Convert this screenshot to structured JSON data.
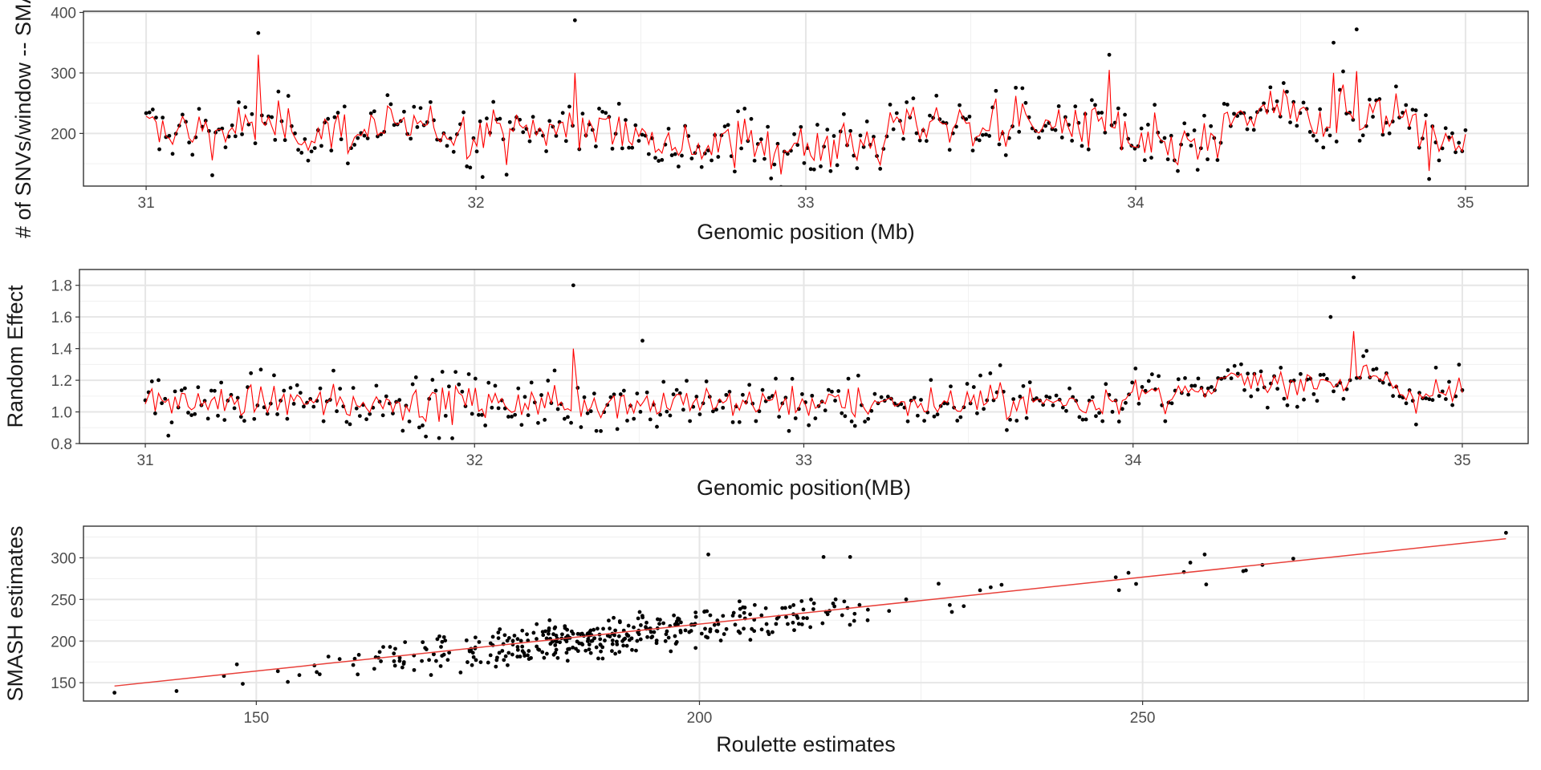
{
  "chart_data": [
    {
      "id": "snv",
      "type": "scatter",
      "xlabel": "Genomic position (Mb)",
      "ylabel": "# of SNVs/window -- SMASH",
      "xlim": [
        30.81,
        35.19
      ],
      "ylim": [
        113,
        402
      ],
      "xticks": [
        31,
        32,
        33,
        34,
        35
      ],
      "xtick_labels": [
        "31",
        "32",
        "33",
        "34",
        "35"
      ],
      "yticks": [
        200,
        300,
        400
      ],
      "ytick_labels": [
        "200",
        "300",
        "400"
      ],
      "grid": true,
      "legend": "none",
      "series": [
        {
          "kind": "points",
          "color": "#000000",
          "x_range": [
            31.0,
            35.0
          ],
          "n": 400,
          "y_sample": [
            178,
            246,
            186,
            210,
            165,
            232,
            242,
            190,
            215,
            230,
            210,
            366,
            205,
            230,
            255,
            264,
            302,
            205,
            217,
            300,
            320,
            244,
            215,
            270,
            200,
            180,
            190,
            215,
            298,
            210,
            200,
            170,
            128,
            200,
            190,
            160,
            215,
            170,
            240,
            150,
            387,
            280,
            290,
            160,
            230,
            180,
            283,
            200,
            190,
            170,
            200,
            175,
            160,
            190,
            190,
            178,
            257,
            180,
            160,
            190,
            142,
            170,
            130,
            185,
            210,
            260,
            215,
            190,
            205,
            240,
            175,
            222,
            200,
            236,
            205,
            230,
            246,
            190,
            210,
            330,
            160,
            175,
            170,
            200,
            170,
            190,
            160,
            155,
            205,
            200,
            255,
            276,
            210,
            230,
            240,
            225,
            250,
            300,
            350,
            190,
            372,
            200,
            230,
            250,
            288,
            200,
            180,
            175,
            200,
            210,
            175
          ],
          "notable_points": [
            [
              31.34,
              366
            ],
            [
              32.3,
              387
            ],
            [
              33.92,
              330
            ],
            [
              34.6,
              350
            ],
            [
              34.67,
              372
            ],
            [
              32.02,
              128
            ]
          ]
        },
        {
          "kind": "line",
          "color": "#ff0000",
          "x_range": [
            31.0,
            35.0
          ],
          "n": 400,
          "peaks": [
            [
              31.34,
              330
            ],
            [
              32.3,
              300
            ],
            [
              33.92,
              305
            ],
            [
              34.6,
              300
            ],
            [
              34.67,
              303
            ]
          ]
        }
      ]
    },
    {
      "id": "random-effect",
      "type": "scatter",
      "xlabel": "Genomic position(MB)",
      "ylabel": "Random Effect",
      "xlim": [
        30.8,
        35.2
      ],
      "ylim": [
        0.8,
        1.9
      ],
      "xticks": [
        31,
        32,
        33,
        34,
        35
      ],
      "xtick_labels": [
        "31",
        "32",
        "33",
        "34",
        "35"
      ],
      "yticks": [
        0.8,
        1.0,
        1.2,
        1.4,
        1.6,
        1.8
      ],
      "ytick_labels": [
        "0.8",
        "1.0",
        "1.2",
        "1.4",
        "1.6",
        "1.8"
      ],
      "grid": true,
      "legend": "none",
      "series": [
        {
          "kind": "points",
          "color": "#000000",
          "x_range": [
            31.0,
            35.0
          ],
          "n": 400,
          "notable_points": [
            [
              31.07,
              0.85
            ],
            [
              32.3,
              1.8
            ],
            [
              32.51,
              1.45
            ],
            [
              34.6,
              1.6
            ],
            [
              34.67,
              1.85
            ],
            [
              32.37,
              0.88
            ]
          ]
        },
        {
          "kind": "line",
          "color": "#ff0000",
          "x_range": [
            31.0,
            35.0
          ],
          "n": 400,
          "peaks": [
            [
              32.3,
              1.4
            ],
            [
              34.67,
              1.51
            ]
          ]
        }
      ]
    },
    {
      "id": "roulette-vs-smash",
      "type": "scatter",
      "xlabel": "Roulette estimates",
      "ylabel": "SMASH estimates",
      "xlim": [
        130.5,
        293.5
      ],
      "ylim": [
        128,
        338
      ],
      "xticks": [
        150,
        200,
        250
      ],
      "xtick_labels": [
        "150",
        "200",
        "250"
      ],
      "yticks": [
        150,
        200,
        250,
        300
      ],
      "ytick_labels": [
        "150",
        "200",
        "250",
        "300"
      ],
      "grid": true,
      "legend": "none",
      "series": [
        {
          "kind": "points",
          "color": "#000000",
          "n": 400,
          "notable_points": [
            [
              134,
              138
            ],
            [
              141,
              140
            ],
            [
              201,
              304
            ],
            [
              214,
              301
            ],
            [
              217,
              301
            ],
            [
              257,
              304
            ],
            [
              267,
              299
            ],
            [
              291,
              330
            ]
          ]
        },
        {
          "kind": "fit-line",
          "color": "#e8403a",
          "x": [
            134,
            291
          ],
          "y": [
            146,
            323
          ]
        }
      ]
    }
  ]
}
